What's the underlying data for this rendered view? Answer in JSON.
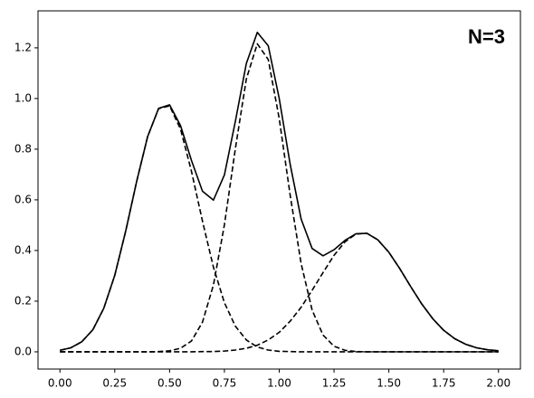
{
  "chart_data": {
    "type": "line",
    "annotation": "N=3",
    "x": [
      0,
      0.05,
      0.1,
      0.15,
      0.2,
      0.25,
      0.3,
      0.35,
      0.4,
      0.45,
      0.5,
      0.55,
      0.6,
      0.65,
      0.7,
      0.75,
      0.8,
      0.85,
      0.9,
      0.95,
      1.0,
      1.05,
      1.1,
      1.15,
      1.2,
      1.25,
      1.3,
      1.35,
      1.4,
      1.45,
      1.5,
      1.55,
      1.6,
      1.65,
      1.7,
      1.75,
      1.8,
      1.85,
      1.9,
      1.95,
      2.0
    ],
    "series": [
      {
        "color": "#000000",
        "linestyle": "solid",
        "values": [
          0.006,
          0.016,
          0.04,
          0.087,
          0.172,
          0.302,
          0.477,
          0.673,
          0.85,
          0.961,
          0.975,
          0.893,
          0.755,
          0.634,
          0.599,
          0.698,
          0.91,
          1.138,
          1.261,
          1.208,
          1.0,
          0.74,
          0.524,
          0.408,
          0.379,
          0.403,
          0.44,
          0.466,
          0.468,
          0.442,
          0.393,
          0.328,
          0.257,
          0.189,
          0.131,
          0.085,
          0.052,
          0.03,
          0.016,
          0.008,
          0.004
        ]
      },
      {
        "color": "#000000",
        "linestyle": "dashed",
        "values": [
          0.006,
          0.016,
          0.04,
          0.087,
          0.172,
          0.302,
          0.477,
          0.673,
          0.85,
          0.96,
          0.971,
          0.879,
          0.712,
          0.516,
          0.334,
          0.194,
          0.101,
          0.047,
          0.019,
          0.007,
          0.002,
          0.001,
          0,
          0,
          0,
          0,
          0,
          0,
          0,
          0,
          0,
          0,
          0,
          0,
          0,
          0,
          0,
          0,
          0,
          0,
          0
        ]
      },
      {
        "color": "#000000",
        "linestyle": "dashed",
        "values": [
          0,
          0,
          0,
          0,
          0,
          0,
          0,
          0,
          0,
          0.001,
          0.004,
          0.014,
          0.043,
          0.117,
          0.264,
          0.501,
          0.802,
          1.077,
          1.216,
          1.154,
          0.921,
          0.618,
          0.348,
          0.165,
          0.066,
          0.022,
          0.006,
          0.001,
          0,
          0,
          0,
          0,
          0,
          0,
          0,
          0,
          0,
          0,
          0,
          0,
          0
        ]
      },
      {
        "color": "#000000",
        "linestyle": "dashed",
        "values": [
          0,
          0,
          0,
          0,
          0,
          0,
          0,
          0,
          0,
          0,
          0,
          0,
          0,
          0.001,
          0.001,
          0.003,
          0.007,
          0.014,
          0.026,
          0.047,
          0.077,
          0.121,
          0.176,
          0.243,
          0.313,
          0.381,
          0.434,
          0.465,
          0.468,
          0.442,
          0.393,
          0.328,
          0.257,
          0.189,
          0.131,
          0.085,
          0.052,
          0.03,
          0.016,
          0.008,
          0.004
        ]
      }
    ],
    "xlim": [
      -0.1,
      2.1
    ],
    "ylim": [
      -0.068,
      1.346
    ],
    "xticks": [
      {
        "value": 0,
        "label": "0.00"
      },
      {
        "value": 0.25,
        "label": "0.25"
      },
      {
        "value": 0.5,
        "label": "0.50"
      },
      {
        "value": 0.75,
        "label": "0.75"
      },
      {
        "value": 1,
        "label": "1.00"
      },
      {
        "value": 1.25,
        "label": "1.25"
      },
      {
        "value": 1.5,
        "label": "1.50"
      },
      {
        "value": 1.75,
        "label": "1.75"
      },
      {
        "value": 2,
        "label": "2.00"
      }
    ],
    "yticks": [
      {
        "value": 0,
        "label": "0.0"
      },
      {
        "value": 0.2,
        "label": "0.2"
      },
      {
        "value": 0.4,
        "label": "0.4"
      },
      {
        "value": 0.6,
        "label": "0.6"
      },
      {
        "value": 0.8,
        "label": "0.8"
      },
      {
        "value": 1,
        "label": "1.0"
      },
      {
        "value": 1.2,
        "label": "1.2"
      }
    ],
    "grid": false
  }
}
